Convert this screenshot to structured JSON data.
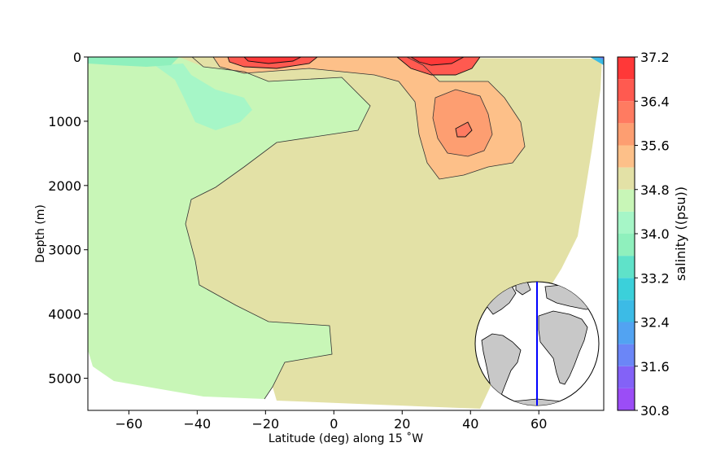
{
  "chart_data": {
    "type": "heatmap",
    "title": "",
    "xlabel": "Latitude (deg) along 15 $^\\circ$W",
    "xlabel_display": "Latitude (deg) along 15 ˚W",
    "ylabel": "Depth (m)",
    "xlim": [
      -72,
      79
    ],
    "ylim": [
      5500,
      0
    ],
    "y_inverted": true,
    "x_ticks": [
      -60,
      -40,
      -20,
      0,
      20,
      40,
      60
    ],
    "x_tick_labels": [
      "−60",
      "−40",
      "−20",
      "0",
      "20",
      "40",
      "60"
    ],
    "y_ticks": [
      0,
      1000,
      2000,
      3000,
      4000,
      5000
    ],
    "y_tick_labels": [
      "0",
      "1000",
      "2000",
      "3000",
      "4000",
      "5000"
    ],
    "colorbar": {
      "label": "salinity ((psu))",
      "levels": [
        30.8,
        31.2,
        31.6,
        32.0,
        32.4,
        32.8,
        33.2,
        33.6,
        34.0,
        34.4,
        34.8,
        35.2,
        35.6,
        36.0,
        36.4,
        36.8,
        37.2
      ],
      "tick_values": [
        30.8,
        31.6,
        32.4,
        33.2,
        34.0,
        34.8,
        35.6,
        36.4,
        37.2
      ],
      "tick_labels": [
        "30.8",
        "31.6",
        "32.4",
        "33.2",
        "34.0",
        "34.8",
        "35.6",
        "36.4",
        "37.2"
      ],
      "colors": [
        "#9b4df6",
        "#8362f7",
        "#6b86f7",
        "#52a3f2",
        "#3cbbe6",
        "#3bd0da",
        "#5fe2c9",
        "#8ff0bd",
        "#a6f6c7",
        "#c8f6b7",
        "#e3e1a6",
        "#fdc089",
        "#fd9e71",
        "#ff7b61",
        "#ff5a50",
        "#ff3838"
      ],
      "colormap": "rainbow"
    },
    "regions": [
      {
        "salinity_range": [
          34.4,
          34.8
        ],
        "description": "background water mass south of 0 and bottom water"
      },
      {
        "salinity_range": [
          34.8,
          35.2
        ],
        "description": "deep water north of the equator"
      },
      {
        "salinity_range": [
          34.0,
          34.4
        ],
        "description": "intermediate water near 30-50 S, 400-1200 m"
      },
      {
        "salinity_range": [
          35.2,
          35.6
        ],
        "description": "upper ocean 0-700 m and Mediterranean outflow tongue 20-50 N"
      },
      {
        "salinity_range": [
          35.6,
          36.4
        ],
        "description": "Mediterranean outflow core near 35 N, 1000-1400 m"
      },
      {
        "salinity_range": [
          36.4,
          37.2
        ],
        "description": "subtropical surface maxima near 25 S and 25 N"
      }
    ],
    "inset_map": {
      "description": "orthographic globe showing section line",
      "section_line_color": "#0000ff"
    }
  }
}
